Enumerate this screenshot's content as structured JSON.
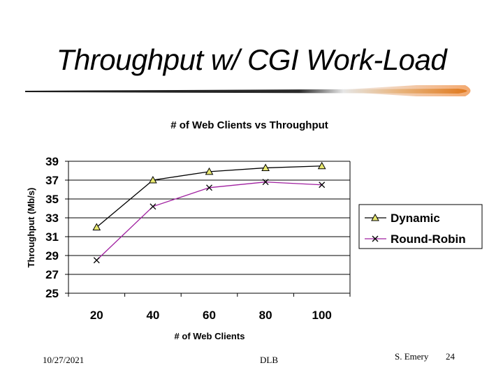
{
  "slide": {
    "title": "Throughput w/ CGI Work-Load"
  },
  "footer": {
    "date": "10/27/2021",
    "center": "DLB",
    "author": "S. Emery",
    "page": "24"
  },
  "chart_data": {
    "type": "line",
    "title": "# of Web Clients vs Throughput",
    "xlabel": "# of Web Clients",
    "ylabel": "Throughput (Mb/s)",
    "categories": [
      "20",
      "40",
      "60",
      "80",
      "100"
    ],
    "ylim": [
      25,
      39
    ],
    "yticks": [
      25,
      27,
      29,
      31,
      33,
      35,
      37,
      39
    ],
    "grid": true,
    "legend_position": "right",
    "series": [
      {
        "name": "Dynamic",
        "values": [
          32.0,
          37.0,
          37.9,
          38.3,
          38.5
        ],
        "marker": "triangle",
        "color": "#000000",
        "marker_fill": "#e8e870"
      },
      {
        "name": "Round-Robin",
        "values": [
          28.5,
          34.2,
          36.2,
          36.8,
          36.5
        ],
        "marker": "x",
        "color": "#a020a0",
        "marker_color": "#000000"
      }
    ]
  }
}
